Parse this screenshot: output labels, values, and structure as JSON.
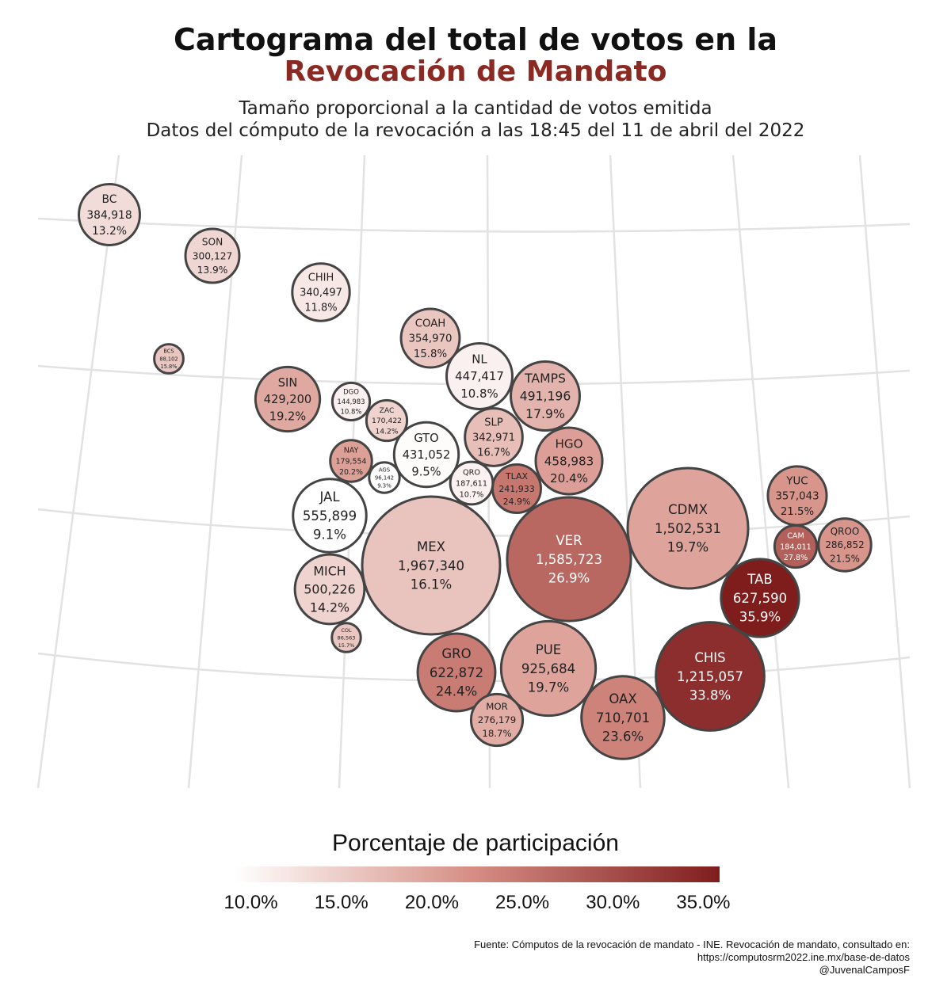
{
  "title_line1": "Cartograma del total de votos en la",
  "title_line2": "Revocación de Mandato",
  "subtitle_line1": "Tamaño proporcional a la cantidad de votos emitida",
  "subtitle_line2": "Datos del cómputo de la revocación a las 18:45 del 11 de abril del 2022",
  "legend": {
    "title": "Porcentaje de participación",
    "ticks": [
      "10.0%",
      "15.0%",
      "20.0%",
      "25.0%",
      "30.0%",
      "35.0%"
    ],
    "min": 9.1,
    "max": 35.9,
    "color_low": "#ffffff",
    "color_high": "#7f1d1d"
  },
  "source": {
    "line1": "Fuente: Cómputos de la revocación de mandato - INE. Revocación de mandato, consultado en:",
    "line2": "https://computosrm2022.ine.mx/base-de-datos",
    "line3": "@JuvenalCamposF"
  },
  "chart_data": {
    "type": "bubble cartogram",
    "size_variable": "votos",
    "color_variable": "participacion_pct",
    "points": [
      {
        "estado": "BC",
        "votos": "384,918",
        "pct": "13.2%",
        "v": 384918,
        "p": 13.2
      },
      {
        "estado": "SON",
        "votos": "300,127",
        "pct": "13.9%",
        "v": 300127,
        "p": 13.9
      },
      {
        "estado": "CHIH",
        "votos": "340,497",
        "pct": "11.8%",
        "v": 340497,
        "p": 11.8
      },
      {
        "estado": "BCS",
        "votos": "88,102",
        "pct": "15.8%",
        "v": 88102,
        "p": 15.8
      },
      {
        "estado": "COAH",
        "votos": "354,970",
        "pct": "15.8%",
        "v": 354970,
        "p": 15.8
      },
      {
        "estado": "NL",
        "votos": "447,417",
        "pct": "10.8%",
        "v": 447417,
        "p": 10.8
      },
      {
        "estado": "TAMPS",
        "votos": "491,196",
        "pct": "17.9%",
        "v": 491196,
        "p": 17.9
      },
      {
        "estado": "SIN",
        "votos": "429,200",
        "pct": "19.2%",
        "v": 429200,
        "p": 19.2
      },
      {
        "estado": "DGO",
        "votos": "144,983",
        "pct": "10.8%",
        "v": 144983,
        "p": 10.8
      },
      {
        "estado": "ZAC",
        "votos": "170,422",
        "pct": "14.2%",
        "v": 170422,
        "p": 14.2
      },
      {
        "estado": "SLP",
        "votos": "342,971",
        "pct": "16.7%",
        "v": 342971,
        "p": 16.7
      },
      {
        "estado": "HGO",
        "votos": "458,983",
        "pct": "20.4%",
        "v": 458983,
        "p": 20.4
      },
      {
        "estado": "NAY",
        "votos": "179,554",
        "pct": "20.2%",
        "v": 179554,
        "p": 20.2
      },
      {
        "estado": "AGS",
        "votos": "96,142",
        "pct": "9.3%",
        "v": 96142,
        "p": 9.3
      },
      {
        "estado": "GTO",
        "votos": "431,052",
        "pct": "9.5%",
        "v": 431052,
        "p": 9.5
      },
      {
        "estado": "QRO",
        "votos": "187,611",
        "pct": "10.7%",
        "v": 187611,
        "p": 10.7
      },
      {
        "estado": "TLAX",
        "votos": "241,933",
        "pct": "24.9%",
        "v": 241933,
        "p": 24.9
      },
      {
        "estado": "JAL",
        "votos": "555,899",
        "pct": "9.1%",
        "v": 555899,
        "p": 9.1
      },
      {
        "estado": "MEX",
        "votos": "1,967,340",
        "pct": "16.1%",
        "v": 1967340,
        "p": 16.1
      },
      {
        "estado": "VER",
        "votos": "1,585,723",
        "pct": "26.9%",
        "v": 1585723,
        "p": 26.9
      },
      {
        "estado": "CDMX",
        "votos": "1,502,531",
        "pct": "19.7%",
        "v": 1502531,
        "p": 19.7
      },
      {
        "estado": "YUC",
        "votos": "357,043",
        "pct": "21.5%",
        "v": 357043,
        "p": 21.5
      },
      {
        "estado": "CAM",
        "votos": "184,011",
        "pct": "27.8%",
        "v": 184011,
        "p": 27.8
      },
      {
        "estado": "QROO",
        "votos": "286,852",
        "pct": "21.5%",
        "v": 286852,
        "p": 21.5
      },
      {
        "estado": "TAB",
        "votos": "627,590",
        "pct": "35.9%",
        "v": 627590,
        "p": 35.9
      },
      {
        "estado": "MICH",
        "votos": "500,226",
        "pct": "14.2%",
        "v": 500226,
        "p": 14.2
      },
      {
        "estado": "COL",
        "votos": "86,563",
        "pct": "15.7%",
        "v": 86563,
        "p": 15.7
      },
      {
        "estado": "GRO",
        "votos": "622,872",
        "pct": "24.4%",
        "v": 622872,
        "p": 24.4
      },
      {
        "estado": "PUE",
        "votos": "925,684",
        "pct": "19.7%",
        "v": 925684,
        "p": 19.7
      },
      {
        "estado": "MOR",
        "votos": "276,179",
        "pct": "18.7%",
        "v": 276179,
        "p": 18.7
      },
      {
        "estado": "OAX",
        "votos": "710,701",
        "pct": "23.6%",
        "v": 710701,
        "p": 23.6
      },
      {
        "estado": "CHIS",
        "votos": "1,215,057",
        "pct": "33.8%",
        "v": 1215057,
        "p": 33.8
      }
    ]
  }
}
